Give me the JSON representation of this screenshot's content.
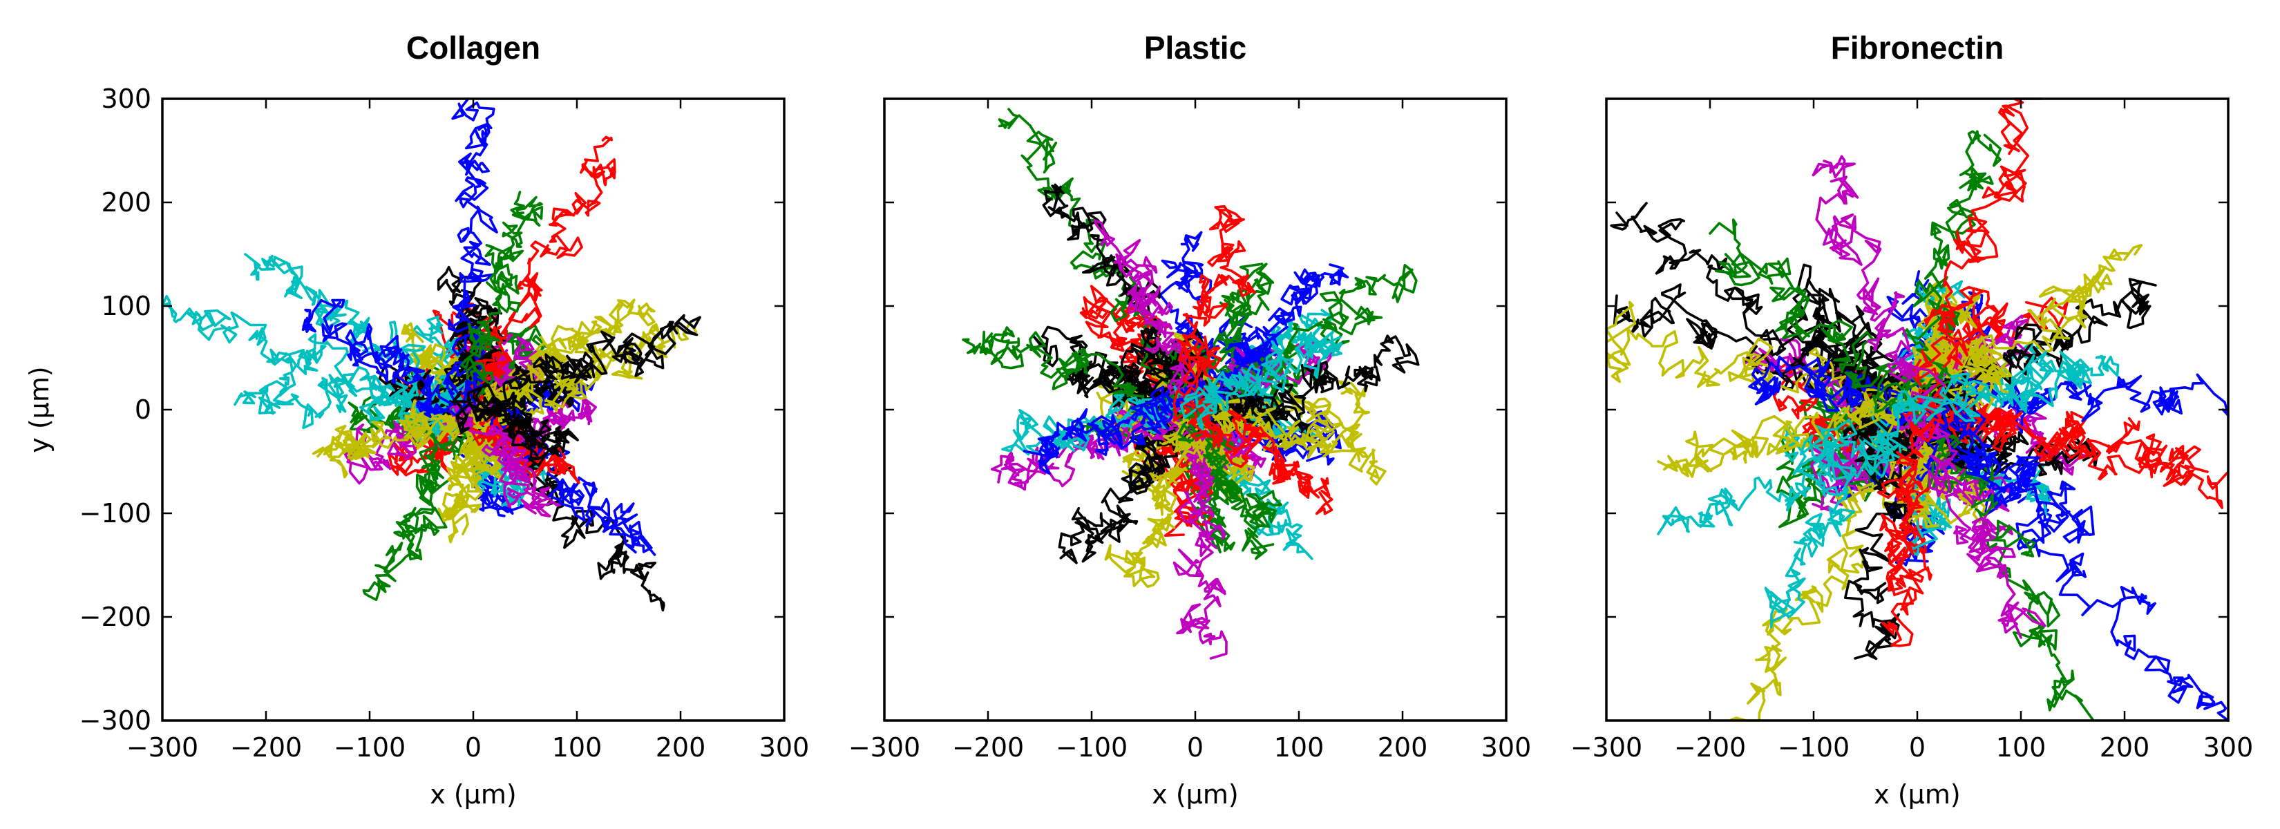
{
  "chart_data": [
    {
      "type": "line",
      "title": "Collagen",
      "xlabel": "x (µm)",
      "ylabel": "y (µm)",
      "xlim": [
        -300,
        300
      ],
      "ylim": [
        -300,
        300
      ],
      "xticks": [
        "−300",
        "−200",
        "−100",
        "0",
        "100",
        "200",
        "300"
      ],
      "yticks": [
        "−300",
        "−200",
        "−100",
        "0",
        "100",
        "200",
        "300"
      ],
      "grid": false,
      "tracks_per_color": 4,
      "end_points": [
        {
          "x": -5,
          "y": 300,
          "color": "#0000ff"
        },
        {
          "x": 125,
          "y": 260,
          "color": "#ff0000"
        },
        {
          "x": 45,
          "y": 210,
          "color": "#008000"
        },
        {
          "x": -290,
          "y": 90,
          "color": "#00bfbf"
        },
        {
          "x": -220,
          "y": 150,
          "color": "#00bfbf"
        },
        {
          "x": -230,
          "y": 5,
          "color": "#00bfbf"
        },
        {
          "x": 215,
          "y": 75,
          "color": "#bfbf00"
        },
        {
          "x": 160,
          "y": 100,
          "color": "#bfbf00"
        },
        {
          "x": 210,
          "y": 85,
          "color": "#000000"
        },
        {
          "x": 170,
          "y": -175,
          "color": "#000000"
        },
        {
          "x": 175,
          "y": -140,
          "color": "#0000ff"
        },
        {
          "x": -90,
          "y": -170,
          "color": "#008000"
        },
        {
          "x": -10,
          "y": -120,
          "color": "#bfbf00"
        },
        {
          "x": 80,
          "y": -60,
          "color": "#ff0000"
        },
        {
          "x": 60,
          "y": -100,
          "color": "#bf00bf"
        },
        {
          "x": -150,
          "y": -45,
          "color": "#bfbf00"
        },
        {
          "x": -160,
          "y": 95,
          "color": "#0000ff"
        },
        {
          "x": 85,
          "y": -30,
          "color": "#000000"
        }
      ]
    },
    {
      "type": "line",
      "title": "Plastic",
      "xlabel": "x (µm)",
      "ylabel": "",
      "xlim": [
        -300,
        300
      ],
      "ylim": [
        -300,
        300
      ],
      "xticks": [
        "−300",
        "−200",
        "−100",
        "0",
        "100",
        "200",
        "300"
      ],
      "grid": false,
      "tracks_per_color": 5,
      "end_points": [
        {
          "x": -180,
          "y": 290,
          "color": "#008000"
        },
        {
          "x": -130,
          "y": 215,
          "color": "#000000"
        },
        {
          "x": -85,
          "y": 170,
          "color": "#bf00bf"
        },
        {
          "x": -220,
          "y": 65,
          "color": "#008000"
        },
        {
          "x": -190,
          "y": -70,
          "color": "#bf00bf"
        },
        {
          "x": -175,
          "y": -20,
          "color": "#00bfbf"
        },
        {
          "x": -165,
          "y": -40,
          "color": "#0000ff"
        },
        {
          "x": -120,
          "y": -140,
          "color": "#000000"
        },
        {
          "x": 15,
          "y": -240,
          "color": "#bf00bf"
        },
        {
          "x": -65,
          "y": -160,
          "color": "#bfbf00"
        },
        {
          "x": 200,
          "y": 125,
          "color": "#008000"
        },
        {
          "x": 200,
          "y": 50,
          "color": "#000000"
        },
        {
          "x": 175,
          "y": -50,
          "color": "#bfbf00"
        },
        {
          "x": 130,
          "y": 140,
          "color": "#0000ff"
        },
        {
          "x": 75,
          "y": -130,
          "color": "#008000"
        },
        {
          "x": 120,
          "y": -80,
          "color": "#ff0000"
        },
        {
          "x": 40,
          "y": 180,
          "color": "#ff0000"
        },
        {
          "x": 140,
          "y": 70,
          "color": "#00bfbf"
        }
      ]
    },
    {
      "type": "line",
      "title": "Fibronectin",
      "xlabel": "x (µm)",
      "ylabel": "",
      "xlim": [
        -300,
        300
      ],
      "ylim": [
        -300,
        300
      ],
      "xticks": [
        "−300",
        "−200",
        "−100",
        "0",
        "100",
        "200",
        "300"
      ],
      "grid": false,
      "tracks_per_color": 6,
      "end_points": [
        {
          "x": 300,
          "y": -60,
          "color": "#ff0000"
        },
        {
          "x": 300,
          "y": -300,
          "color": "#0000ff"
        },
        {
          "x": 295,
          "y": 0,
          "color": "#0000ff"
        },
        {
          "x": -290,
          "y": 110,
          "color": "#000000"
        },
        {
          "x": -290,
          "y": 190,
          "color": "#000000"
        },
        {
          "x": -300,
          "y": 65,
          "color": "#bfbf00"
        },
        {
          "x": -150,
          "y": 35,
          "color": "#0000ff"
        },
        {
          "x": -170,
          "y": -300,
          "color": "#bfbf00"
        },
        {
          "x": -60,
          "y": -240,
          "color": "#000000"
        },
        {
          "x": -140,
          "y": -190,
          "color": "#00bfbf"
        },
        {
          "x": 170,
          "y": -300,
          "color": "#008000"
        },
        {
          "x": 230,
          "y": 120,
          "color": "#000000"
        },
        {
          "x": 210,
          "y": 150,
          "color": "#bfbf00"
        },
        {
          "x": 65,
          "y": 265,
          "color": "#008000"
        },
        {
          "x": 120,
          "y": 300,
          "color": "#ff0000"
        },
        {
          "x": 280,
          "y": -60,
          "color": "#ff0000"
        },
        {
          "x": -250,
          "y": -50,
          "color": "#bfbf00"
        },
        {
          "x": 170,
          "y": -120,
          "color": "#0000ff"
        },
        {
          "x": -200,
          "y": 170,
          "color": "#008000"
        },
        {
          "x": -90,
          "y": 240,
          "color": "#bf00bf"
        },
        {
          "x": 100,
          "y": -220,
          "color": "#bf00bf"
        },
        {
          "x": -20,
          "y": -210,
          "color": "#ff0000"
        },
        {
          "x": -250,
          "y": -120,
          "color": "#00bfbf"
        },
        {
          "x": 180,
          "y": 40,
          "color": "#00bfbf"
        }
      ]
    }
  ],
  "colors": [
    "#0000ff",
    "#008000",
    "#ff0000",
    "#00bfbf",
    "#bf00bf",
    "#bfbf00",
    "#000000"
  ]
}
